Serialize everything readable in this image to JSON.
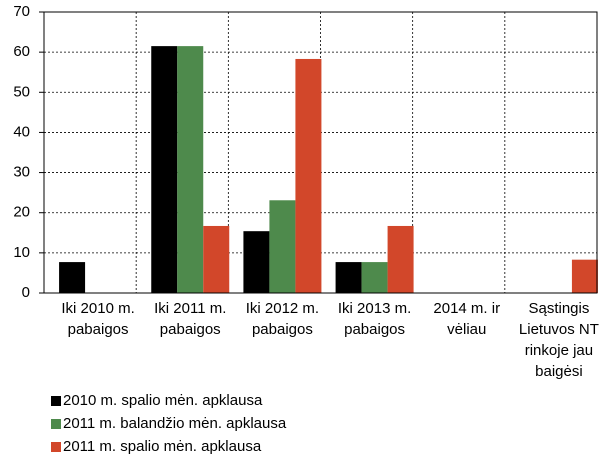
{
  "chart_data": {
    "type": "bar",
    "categories": [
      "Iki 2010 m.\npabaigos",
      "Iki 2011 m.\npabaigos",
      "Iki 2012 m.\npabaigos",
      "Iki 2013 m.\npabaigos",
      "2014 m. ir\nvėliau",
      "Sąstingis\nLietuvos NT\nrinkoje jau\nbaigėsi"
    ],
    "series": [
      {
        "name": "2010 m. spalio mėn. apklausa",
        "color": "#000000",
        "values": [
          7.7,
          61.5,
          15.4,
          7.7,
          0,
          0
        ]
      },
      {
        "name": "2011 m. balandžio mėn. apklausa",
        "color": "#4e8a4c",
        "values": [
          0,
          61.5,
          23.1,
          7.7,
          0,
          0
        ]
      },
      {
        "name": "2011 m. spalio mėn. apklausa",
        "color": "#d2472a",
        "values": [
          0,
          16.7,
          58.3,
          16.7,
          0,
          8.3
        ]
      }
    ],
    "ylim": [
      0,
      70
    ],
    "yticks": [
      0,
      10,
      20,
      30,
      40,
      50,
      60,
      70
    ],
    "grid": true,
    "legend": "bottom-left"
  }
}
